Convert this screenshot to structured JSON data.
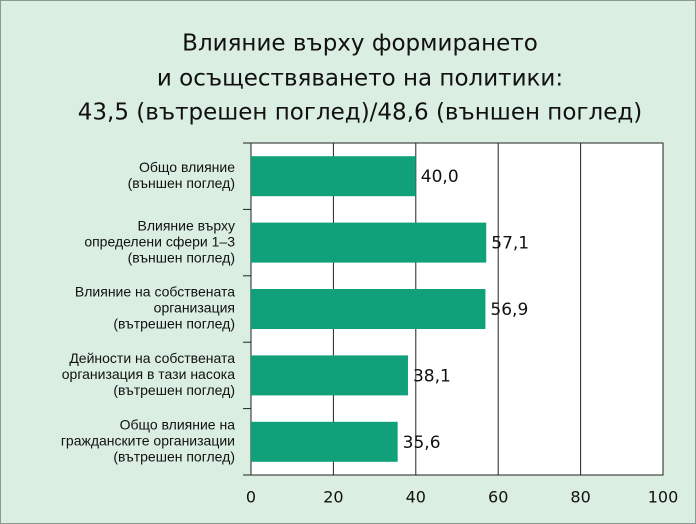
{
  "chart_data": {
    "type": "bar",
    "orientation": "horizontal",
    "title": [
      "Влияние върху формирането",
      "и осъществяването на политики:",
      "43,5 (вътрешен поглед)/48,6 (външен поглед)"
    ],
    "categories": [
      [
        "Общо влияние",
        "(външен поглед)"
      ],
      [
        "Влияние върху",
        "определени сфери 1–3",
        "(външен поглед)"
      ],
      [
        "Влияние на собствената",
        "организация",
        "(вътрешен поглед)"
      ],
      [
        "Дейности на собствената",
        "организация в тази насока",
        "(вътрешен поглед)"
      ],
      [
        "Общо влияние на",
        "гражданските организации",
        "(вътрешен поглед)"
      ]
    ],
    "values": [
      40.0,
      57.1,
      56.9,
      38.1,
      35.6
    ],
    "value_labels": [
      "40,0",
      "57,1",
      "56,9",
      "38,1",
      "35,6"
    ],
    "color": "#10a17a",
    "xlim": [
      0,
      100
    ],
    "xticks": [
      0,
      20,
      40,
      60,
      80,
      100
    ],
    "grid": true
  }
}
